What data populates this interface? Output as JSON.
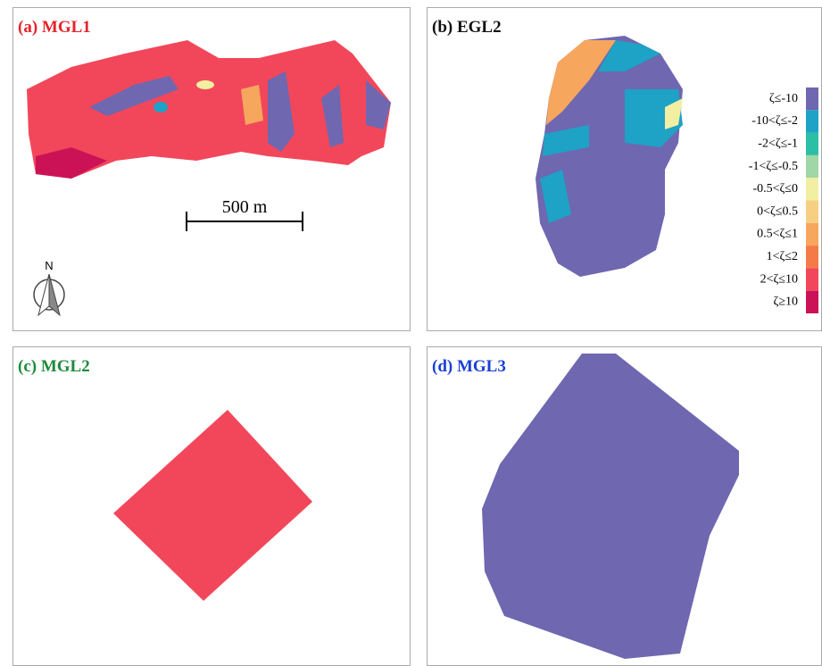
{
  "panels": [
    {
      "label": "(a) MGL1",
      "color": "#e8232a"
    },
    {
      "label": "(b) EGL2",
      "color": "#111111"
    },
    {
      "label": "(c) MGL2",
      "color": "#1d8a3a"
    },
    {
      "label": "(d) MGL3",
      "color": "#1a3fd6"
    }
  ],
  "scale_bar": {
    "label": "500 m"
  },
  "north_arrow": {
    "label": "N"
  },
  "legend": [
    {
      "label": "ζ≤-10",
      "color": "#6f67b0"
    },
    {
      "label": "-10<ζ≤-2",
      "color": "#1ea2c6"
    },
    {
      "label": "-2<ζ≤-1",
      "color": "#2bbfa6"
    },
    {
      "label": "-1<ζ≤-0.5",
      "color": "#9fd7a6"
    },
    {
      "label": "-0.5<ζ≤0",
      "color": "#f2eea2"
    },
    {
      "label": "0<ζ≤0.5",
      "color": "#f7cf82"
    },
    {
      "label": "0.5<ζ≤1",
      "color": "#f7a65e"
    },
    {
      "label": "1<ζ≤2",
      "color": "#f47b48"
    },
    {
      "label": "2<ζ≤10",
      "color": "#f2475a"
    },
    {
      "label": "ζ≥10",
      "color": "#cc1256"
    }
  ]
}
